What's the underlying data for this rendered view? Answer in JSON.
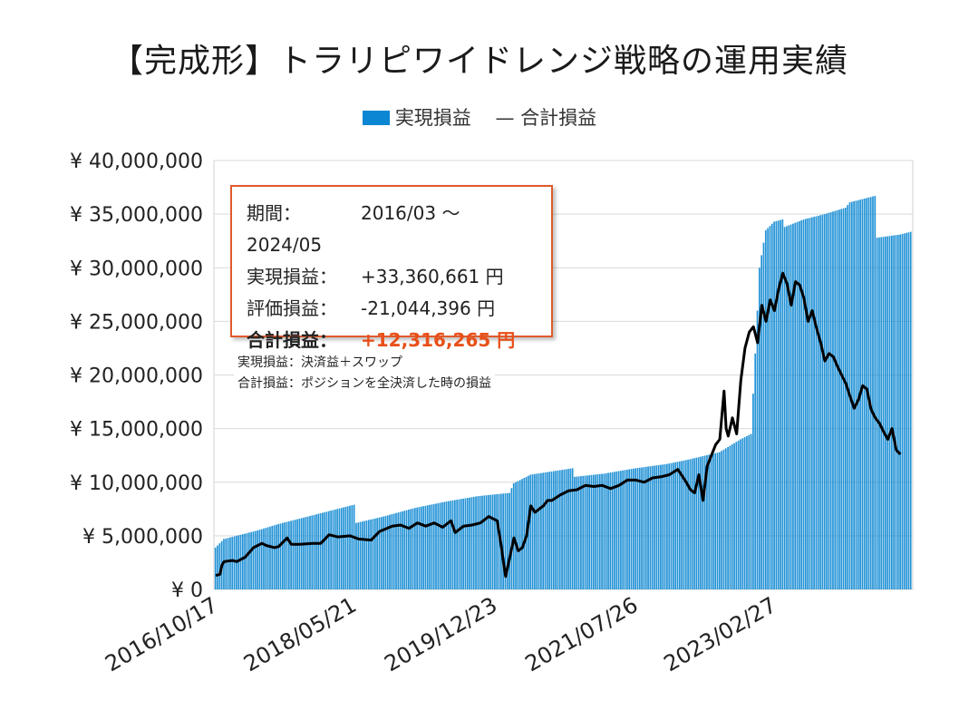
{
  "title": "【完成形】トラリピワイドレンジ戦略の運用実績",
  "legend": {
    "bar_label": "実現損益",
    "line_label": "— 合計損益"
  },
  "info": {
    "period_label": "期間：",
    "period_value": "2016/03 〜 2024/05",
    "realized_label": "実現損益：",
    "realized_value": "+33,360,661 円",
    "unrealized_label": "評価損益：",
    "unrealized_value": "-21,044,396 円",
    "total_label": "合計損益：",
    "total_value": "+12,316,265 円"
  },
  "notes": [
    "実現損益：決済益＋スワップ",
    "合計損益：ポジションを全決済した時の損益"
  ],
  "colors": {
    "bar": "#0a86d2",
    "line": "#000000",
    "accent": "#e8501a",
    "grid": "#d9d9d9"
  },
  "chart_data": {
    "type": "bar+line",
    "ylim": [
      0,
      40000000
    ],
    "yticks": [
      "¥ 0",
      "¥ 5,000,000",
      "¥ 10,000,000",
      "¥ 15,000,000",
      "¥ 20,000,000",
      "¥ 25,000,000",
      "¥ 30,000,000",
      "¥ 35,000,000",
      "¥ 40,000,000"
    ],
    "xticks": [
      "2016/10/17",
      "2018/05/21",
      "2019/12/23",
      "2021/07/26",
      "2023/02/27"
    ],
    "grid": true,
    "legend_position": "top",
    "series": [
      {
        "name": "実現損益",
        "type": "bar",
        "points": [
          [
            0,
            3900000
          ],
          [
            2,
            4300000
          ],
          [
            4,
            4700000
          ],
          [
            10,
            5000000
          ],
          [
            20,
            5500000
          ],
          [
            30,
            6100000
          ],
          [
            40,
            6600000
          ],
          [
            50,
            7100000
          ],
          [
            60,
            7600000
          ],
          [
            66,
            7900000
          ],
          [
            67,
            6200000
          ],
          [
            80,
            6800000
          ],
          [
            95,
            7600000
          ],
          [
            110,
            8200000
          ],
          [
            125,
            8700000
          ],
          [
            140,
            9000000
          ],
          [
            142,
            9900000
          ],
          [
            150,
            10700000
          ],
          [
            160,
            11000000
          ],
          [
            170,
            11300000
          ],
          [
            171,
            10500000
          ],
          [
            185,
            10800000
          ],
          [
            200,
            11300000
          ],
          [
            215,
            11700000
          ],
          [
            225,
            12100000
          ],
          [
            240,
            12800000
          ],
          [
            250,
            14000000
          ],
          [
            255,
            14500000
          ],
          [
            257,
            22000000
          ],
          [
            259,
            30000000
          ],
          [
            262,
            33500000
          ],
          [
            266,
            34300000
          ],
          [
            270,
            34500000
          ],
          [
            271,
            33800000
          ],
          [
            280,
            34500000
          ],
          [
            290,
            35000000
          ],
          [
            300,
            35600000
          ],
          [
            302,
            36100000
          ],
          [
            310,
            36500000
          ],
          [
            314,
            36700000
          ],
          [
            315,
            32800000
          ],
          [
            326,
            33100000
          ],
          [
            331,
            33350000
          ]
        ]
      },
      {
        "name": "合計損益",
        "type": "line",
        "points": [
          [
            0,
            1300000
          ],
          [
            2,
            1400000
          ],
          [
            3,
            2300000
          ],
          [
            4,
            2600000
          ],
          [
            8,
            2700000
          ],
          [
            10,
            2600000
          ],
          [
            14,
            3000000
          ],
          [
            18,
            3900000
          ],
          [
            22,
            4300000
          ],
          [
            24,
            4100000
          ],
          [
            28,
            3900000
          ],
          [
            30,
            4000000
          ],
          [
            34,
            4800000
          ],
          [
            36,
            4200000
          ],
          [
            40,
            4200000
          ],
          [
            46,
            4300000
          ],
          [
            50,
            4300000
          ],
          [
            54,
            5100000
          ],
          [
            58,
            4900000
          ],
          [
            64,
            5000000
          ],
          [
            68,
            4700000
          ],
          [
            74,
            4600000
          ],
          [
            78,
            5400000
          ],
          [
            84,
            5900000
          ],
          [
            88,
            6000000
          ],
          [
            92,
            5700000
          ],
          [
            96,
            6200000
          ],
          [
            100,
            5900000
          ],
          [
            104,
            6200000
          ],
          [
            108,
            5800000
          ],
          [
            112,
            6400000
          ],
          [
            114,
            5300000
          ],
          [
            118,
            5900000
          ],
          [
            122,
            6000000
          ],
          [
            126,
            6200000
          ],
          [
            130,
            6800000
          ],
          [
            134,
            6400000
          ],
          [
            136,
            4000000
          ],
          [
            137,
            2500000
          ],
          [
            138,
            1200000
          ],
          [
            140,
            3000000
          ],
          [
            142,
            4800000
          ],
          [
            144,
            3600000
          ],
          [
            146,
            3900000
          ],
          [
            148,
            5000000
          ],
          [
            150,
            7800000
          ],
          [
            152,
            7200000
          ],
          [
            156,
            7800000
          ],
          [
            158,
            8300000
          ],
          [
            160,
            8300000
          ],
          [
            164,
            8800000
          ],
          [
            168,
            9200000
          ],
          [
            172,
            9300000
          ],
          [
            176,
            9700000
          ],
          [
            180,
            9600000
          ],
          [
            184,
            9700000
          ],
          [
            188,
            9400000
          ],
          [
            192,
            9700000
          ],
          [
            196,
            10200000
          ],
          [
            200,
            10200000
          ],
          [
            204,
            10000000
          ],
          [
            208,
            10400000
          ],
          [
            212,
            10500000
          ],
          [
            216,
            10700000
          ],
          [
            220,
            11200000
          ],
          [
            224,
            10000000
          ],
          [
            226,
            9300000
          ],
          [
            228,
            9000000
          ],
          [
            230,
            10700000
          ],
          [
            232,
            8300000
          ],
          [
            234,
            11500000
          ],
          [
            238,
            13500000
          ],
          [
            240,
            14000000
          ],
          [
            242,
            18500000
          ],
          [
            243,
            15000000
          ],
          [
            244,
            14300000
          ],
          [
            246,
            16000000
          ],
          [
            248,
            14500000
          ],
          [
            250,
            19500000
          ],
          [
            252,
            22500000
          ],
          [
            254,
            24000000
          ],
          [
            256,
            24500000
          ],
          [
            258,
            23000000
          ],
          [
            260,
            26500000
          ],
          [
            262,
            25000000
          ],
          [
            264,
            27000000
          ],
          [
            266,
            26000000
          ],
          [
            268,
            28000000
          ],
          [
            270,
            29500000
          ],
          [
            272,
            28500000
          ],
          [
            274,
            26500000
          ],
          [
            276,
            28700000
          ],
          [
            278,
            28400000
          ],
          [
            280,
            27200000
          ],
          [
            282,
            25000000
          ],
          [
            284,
            26000000
          ],
          [
            286,
            24400000
          ],
          [
            288,
            23000000
          ],
          [
            290,
            21300000
          ],
          [
            292,
            22000000
          ],
          [
            294,
            21700000
          ],
          [
            296,
            20800000
          ],
          [
            298,
            20000000
          ],
          [
            300,
            19200000
          ],
          [
            302,
            18000000
          ],
          [
            304,
            16900000
          ],
          [
            306,
            17700000
          ],
          [
            308,
            19000000
          ],
          [
            310,
            18700000
          ],
          [
            312,
            16800000
          ],
          [
            314,
            16000000
          ],
          [
            316,
            15500000
          ],
          [
            318,
            14700000
          ],
          [
            320,
            14000000
          ],
          [
            322,
            15000000
          ],
          [
            324,
            13000000
          ],
          [
            326,
            12600000
          ]
        ]
      }
    ]
  }
}
